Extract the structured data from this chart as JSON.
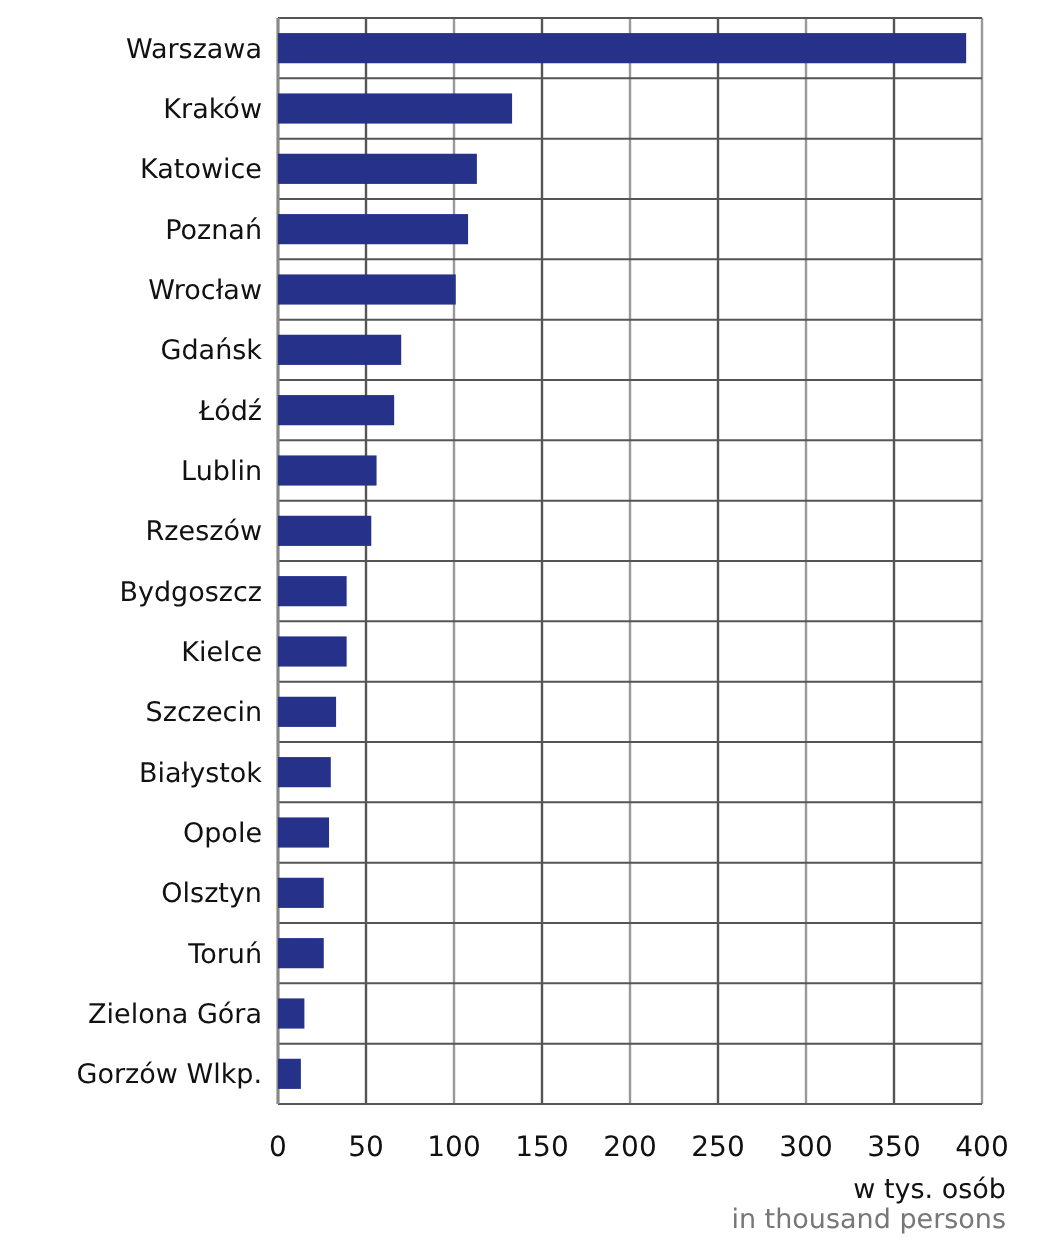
{
  "chart_data": {
    "type": "bar",
    "orientation": "horizontal",
    "xlabel": "w tys. osób\nin thousand persons",
    "categories": [
      "Warszawa",
      "Kraków",
      "Katowice",
      "Poznań",
      "Wrocław",
      "Gdańsk",
      "Łódź",
      "Lublin",
      "Rzeszów",
      "Bydgoszcz",
      "Kielce",
      "Szczecin",
      "Białystok",
      "Opole",
      "Olsztyn",
      "Toruń",
      "Zielona Góra",
      "Gorzów Wlkp."
    ],
    "values": [
      391,
      133,
      113,
      108,
      101,
      70,
      66,
      56,
      53,
      39,
      39,
      33,
      30,
      29,
      26,
      26,
      15,
      13
    ],
    "color": "#263289",
    "xlim": [
      0,
      400
    ],
    "xticks": [
      0,
      50,
      100,
      150,
      200,
      250,
      300,
      350,
      400
    ],
    "grid": true
  }
}
